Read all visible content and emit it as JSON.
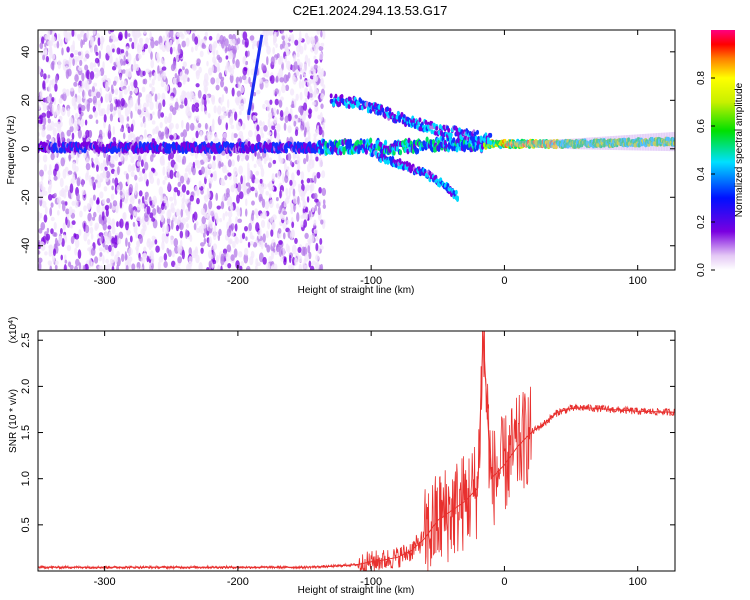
{
  "title": "C2E1.2024.294.13.53.G17",
  "chart_data": [
    {
      "type": "heatmap",
      "xlabel": "Height of straight line (km)",
      "ylabel": "Frequency (Hz)",
      "xlim": [
        -350,
        128
      ],
      "ylim": [
        -50,
        49
      ],
      "x_ticks": [
        -300,
        -200,
        -100,
        0,
        100
      ],
      "x_tick_labels": [
        "-300",
        "-200",
        "-100",
        "0",
        "100"
      ],
      "y_ticks": [
        -40,
        -20,
        0,
        20,
        40
      ],
      "y_tick_labels": [
        "-40",
        "-20",
        "0",
        "20",
        "40"
      ],
      "colorbar": {
        "label": "Normalized spectral amplitude",
        "range": [
          0,
          1
        ],
        "ticks": [
          0.0,
          0.2,
          0.4,
          0.6,
          0.8
        ],
        "tick_labels": [
          "0.0",
          "0.2",
          "0.4",
          "0.6",
          "0.8"
        ],
        "colormap": "rainbow (white-violet-blue-cyan-green-yellow-red-magenta)"
      },
      "features": {
        "noise_region_x": [
          -350,
          -135
        ],
        "carrier_ridge": [
          {
            "x": -350,
            "f": 0.5
          },
          {
            "x": -300,
            "f": 0.5
          },
          {
            "x": -200,
            "f": 0.5
          },
          {
            "x": -140,
            "f": 0.5
          },
          {
            "x": -120,
            "f": 1
          },
          {
            "x": -100,
            "f": 1
          },
          {
            "x": -80,
            "f": 0.5
          },
          {
            "x": -60,
            "f": 1.5
          },
          {
            "x": -40,
            "f": 2
          },
          {
            "x": -20,
            "f": 1.5
          },
          {
            "x": 0,
            "f": 2
          },
          {
            "x": 50,
            "f": 2
          },
          {
            "x": 128,
            "f": 3
          }
        ],
        "upper_branch": [
          {
            "x": -130,
            "f": 20
          },
          {
            "x": -110,
            "f": 19
          },
          {
            "x": -90,
            "f": 15
          },
          {
            "x": -70,
            "f": 11
          },
          {
            "x": -50,
            "f": 8
          },
          {
            "x": -30,
            "f": 6
          },
          {
            "x": -10,
            "f": 4
          }
        ],
        "lower_branch": [
          {
            "x": -100,
            "f": -2
          },
          {
            "x": -80,
            "f": -6
          },
          {
            "x": -60,
            "f": -10
          },
          {
            "x": -45,
            "f": -15
          },
          {
            "x": -35,
            "f": -20
          }
        ],
        "diagonal_streak": [
          {
            "x": -192,
            "f": 14
          },
          {
            "x": -182,
            "f": 47
          }
        ]
      }
    },
    {
      "type": "line",
      "xlabel": "Height of straight line (km)",
      "ylabel": "SNR (10 * v/v)",
      "y_multiplier_label": "(x10",
      "y_multiplier_exponent": "4",
      "y_multiplier_suffix": ")",
      "xlim": [
        -350,
        128
      ],
      "ylim": [
        0,
        2.6
      ],
      "x_ticks": [
        -300,
        -200,
        -100,
        0,
        100
      ],
      "x_tick_labels": [
        "-300",
        "-200",
        "-100",
        "0",
        "100"
      ],
      "y_ticks": [
        0.5,
        1.0,
        1.5,
        2.0,
        2.5
      ],
      "y_tick_labels": [
        "0.5",
        "1.0",
        "1.5",
        "2.0",
        "2.5"
      ],
      "color": "#e8302e",
      "x": [
        -350,
        -300,
        -250,
        -200,
        -150,
        -130,
        -110,
        -100,
        -90,
        -80,
        -70,
        -60,
        -50,
        -40,
        -30,
        -20,
        -16,
        -10,
        0,
        10,
        20,
        30,
        40,
        50,
        60,
        80,
        100,
        128
      ],
      "y": [
        0.04,
        0.04,
        0.04,
        0.04,
        0.04,
        0.05,
        0.07,
        0.1,
        0.12,
        0.15,
        0.22,
        0.35,
        0.55,
        0.65,
        0.75,
        0.9,
        2.55,
        1.0,
        1.15,
        1.35,
        1.5,
        1.6,
        1.72,
        1.76,
        1.77,
        1.75,
        1.73,
        1.72
      ]
    }
  ]
}
